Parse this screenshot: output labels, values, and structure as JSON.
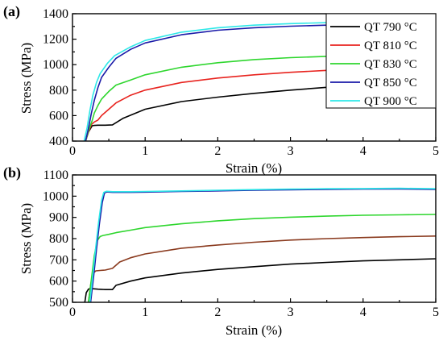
{
  "chart_data": [
    {
      "type": "line",
      "panel_label": "(a)",
      "xlabel": "Strain (%)",
      "ylabel": "Stress (MPa)",
      "xlim": [
        0,
        5
      ],
      "ylim": [
        400,
        1400
      ],
      "xticks": [
        "0",
        "1",
        "2",
        "3",
        "4",
        "5"
      ],
      "yticks": [
        "400",
        "600",
        "800",
        "1000",
        "1200",
        "1400"
      ],
      "legend": "top-right",
      "series": [
        {
          "name": "QT 790 °C",
          "color": "#000000",
          "x": [
            0.18,
            0.22,
            0.27,
            0.3,
            0.35,
            0.45,
            0.55,
            0.7,
            1.0,
            1.5,
            2.0,
            2.5,
            3.0,
            3.5,
            4.0,
            4.3
          ],
          "y": [
            400,
            470,
            520,
            523,
            525,
            525,
            527,
            580,
            650,
            710,
            745,
            775,
            800,
            822,
            840,
            848
          ]
        },
        {
          "name": "QT 810 °C",
          "color": "#e8231e",
          "x": [
            0.18,
            0.22,
            0.26,
            0.3,
            0.35,
            0.4,
            0.5,
            0.6,
            0.8,
            1.0,
            1.5,
            2.0,
            2.5,
            3.0,
            3.5,
            4.0,
            4.3
          ],
          "y": [
            400,
            470,
            530,
            550,
            565,
            600,
            650,
            700,
            760,
            800,
            860,
            895,
            920,
            940,
            955,
            968,
            975
          ]
        },
        {
          "name": "QT 830 °C",
          "color": "#2ed62e",
          "x": [
            0.18,
            0.22,
            0.27,
            0.3,
            0.35,
            0.4,
            0.5,
            0.6,
            0.8,
            1.0,
            1.5,
            2.0,
            2.5,
            3.0,
            3.5,
            4.0,
            4.3
          ],
          "y": [
            400,
            480,
            560,
            620,
            680,
            730,
            790,
            840,
            880,
            920,
            980,
            1015,
            1040,
            1055,
            1065,
            1072,
            1077
          ]
        },
        {
          "name": "QT 850 °C",
          "color": "#1a1aa8",
          "x": [
            0.18,
            0.22,
            0.26,
            0.3,
            0.35,
            0.4,
            0.5,
            0.6,
            0.8,
            1.0,
            1.5,
            2.0,
            2.5,
            3.0,
            3.5,
            4.0,
            4.3
          ],
          "y": [
            400,
            500,
            620,
            720,
            820,
            900,
            980,
            1050,
            1120,
            1170,
            1235,
            1270,
            1290,
            1302,
            1310,
            1314,
            1316
          ]
        },
        {
          "name": "QT 900 °C",
          "color": "#2ee8e8",
          "x": [
            0.16,
            0.2,
            0.24,
            0.28,
            0.33,
            0.38,
            0.48,
            0.58,
            0.8,
            1.0,
            1.5,
            2.0,
            2.5,
            3.0,
            3.5,
            4.0,
            4.3
          ],
          "y": [
            400,
            500,
            640,
            760,
            860,
            930,
            1010,
            1070,
            1140,
            1190,
            1255,
            1290,
            1310,
            1322,
            1330,
            1334,
            1336
          ]
        }
      ]
    },
    {
      "type": "line",
      "panel_label": "(b)",
      "xlabel": "Strain (%)",
      "ylabel": "Stress (MPa)",
      "xlim": [
        0,
        5
      ],
      "ylim": [
        500,
        1100
      ],
      "xticks": [
        "0",
        "1",
        "2",
        "3",
        "4",
        "5"
      ],
      "yticks": [
        "500",
        "600",
        "700",
        "800",
        "900",
        "1000",
        "1100"
      ],
      "series": [
        {
          "name": "QT 790 °C",
          "color": "#000000",
          "x": [
            0.17,
            0.19,
            0.22,
            0.25,
            0.35,
            0.45,
            0.55,
            0.6,
            0.8,
            1.0,
            1.5,
            2.0,
            2.5,
            3.0,
            3.5,
            4.0,
            4.5,
            5.0
          ],
          "y": [
            500,
            545,
            562,
            565,
            562,
            560,
            560,
            580,
            600,
            615,
            638,
            655,
            668,
            680,
            688,
            695,
            700,
            705
          ]
        },
        {
          "name": "QT 810 °C",
          "color": "#8a3a1e",
          "x": [
            0.22,
            0.25,
            0.28,
            0.32,
            0.38,
            0.45,
            0.55,
            0.65,
            0.8,
            1.0,
            1.5,
            2.0,
            2.5,
            3.0,
            3.5,
            4.0,
            4.5,
            5.0
          ],
          "y": [
            500,
            580,
            635,
            648,
            650,
            652,
            660,
            690,
            710,
            728,
            755,
            770,
            783,
            793,
            800,
            805,
            809,
            812
          ]
        },
        {
          "name": "QT 830 °C",
          "color": "#2ed62e",
          "x": [
            0.22,
            0.26,
            0.3,
            0.34,
            0.38,
            0.42,
            0.5,
            0.6,
            0.8,
            1.0,
            1.5,
            2.0,
            2.5,
            3.0,
            3.5,
            4.0,
            4.5,
            5.0
          ],
          "y": [
            500,
            610,
            720,
            790,
            810,
            815,
            820,
            828,
            840,
            852,
            870,
            884,
            894,
            901,
            906,
            910,
            912,
            914
          ]
        },
        {
          "name": "QT 850 °C",
          "color": "#1a1aa8",
          "x": [
            0.25,
            0.29,
            0.33,
            0.37,
            0.41,
            0.44,
            0.47,
            0.55,
            0.8,
            1.0,
            1.5,
            2.0,
            2.5,
            3.0,
            3.5,
            4.0,
            4.5,
            5.0
          ],
          "y": [
            500,
            620,
            750,
            870,
            970,
            1015,
            1020,
            1018,
            1018,
            1019,
            1022,
            1025,
            1028,
            1030,
            1032,
            1033,
            1034,
            1032
          ]
        },
        {
          "name": "QT 900 °C",
          "color": "#2ee8e8",
          "x": [
            0.24,
            0.28,
            0.32,
            0.36,
            0.4,
            0.43,
            0.47,
            0.55,
            0.8,
            1.0,
            1.5,
            2.0,
            2.5,
            3.0,
            3.5,
            4.0,
            4.5,
            5.0
          ],
          "y": [
            500,
            630,
            760,
            880,
            980,
            1018,
            1023,
            1021,
            1021,
            1022,
            1025,
            1028,
            1031,
            1033,
            1035,
            1036,
            1037,
            1035
          ]
        }
      ]
    }
  ]
}
